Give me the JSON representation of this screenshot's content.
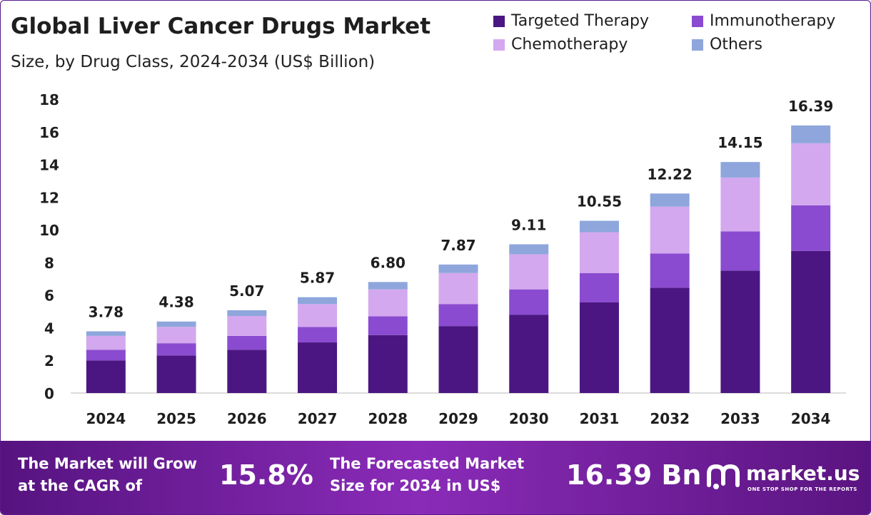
{
  "title": "Global Liver Cancer Drugs Market",
  "subtitle": "Size, by Drug Class, 2024-2034 (US$ Billion)",
  "legend": [
    {
      "name": "Targeted Therapy",
      "color": "#4b1681"
    },
    {
      "name": "Immunotherapy",
      "color": "#8a4bd0"
    },
    {
      "name": "Chemotherapy",
      "color": "#d4a8ee"
    },
    {
      "name": "Others",
      "color": "#8ea6dc"
    }
  ],
  "chart_data": {
    "type": "bar",
    "stacked": true,
    "categories": [
      "2024",
      "2025",
      "2026",
      "2027",
      "2028",
      "2029",
      "2030",
      "2031",
      "2032",
      "2033",
      "2034"
    ],
    "series": [
      {
        "name": "Targeted Therapy",
        "values": [
          2.0,
          2.3,
          2.65,
          3.1,
          3.55,
          4.1,
          4.8,
          5.55,
          6.45,
          7.5,
          8.7
        ]
      },
      {
        "name": "Immunotherapy",
        "values": [
          0.65,
          0.75,
          0.85,
          0.95,
          1.15,
          1.35,
          1.55,
          1.8,
          2.1,
          2.4,
          2.8
        ]
      },
      {
        "name": "Chemotherapy",
        "values": [
          0.85,
          1.0,
          1.22,
          1.4,
          1.65,
          1.9,
          2.15,
          2.5,
          2.87,
          3.3,
          3.8
        ]
      },
      {
        "name": "Others",
        "values": [
          0.28,
          0.33,
          0.35,
          0.42,
          0.45,
          0.52,
          0.61,
          0.7,
          0.8,
          0.95,
          1.09
        ]
      }
    ],
    "totals": [
      "3.78",
      "4.38",
      "5.07",
      "5.87",
      "6.80",
      "7.87",
      "9.11",
      "10.55",
      "12.22",
      "14.15",
      "16.39"
    ],
    "ylim": [
      0,
      18
    ],
    "yticks": [
      0,
      2,
      4,
      6,
      8,
      10,
      12,
      14,
      16,
      18
    ],
    "grid": false,
    "legend_position": "top-right"
  },
  "footer": {
    "cagr_text_line1": "The Market will Grow",
    "cagr_text_line2": "at the CAGR of",
    "cagr_value": "15.8%",
    "forecast_text_line1": "The Forecasted Market",
    "forecast_text_line2": "Size for 2034 in US$",
    "forecast_value": "16.39 Bn",
    "brand_name": "market.us",
    "brand_tagline": "ONE STOP SHOP FOR THE REPORTS"
  }
}
